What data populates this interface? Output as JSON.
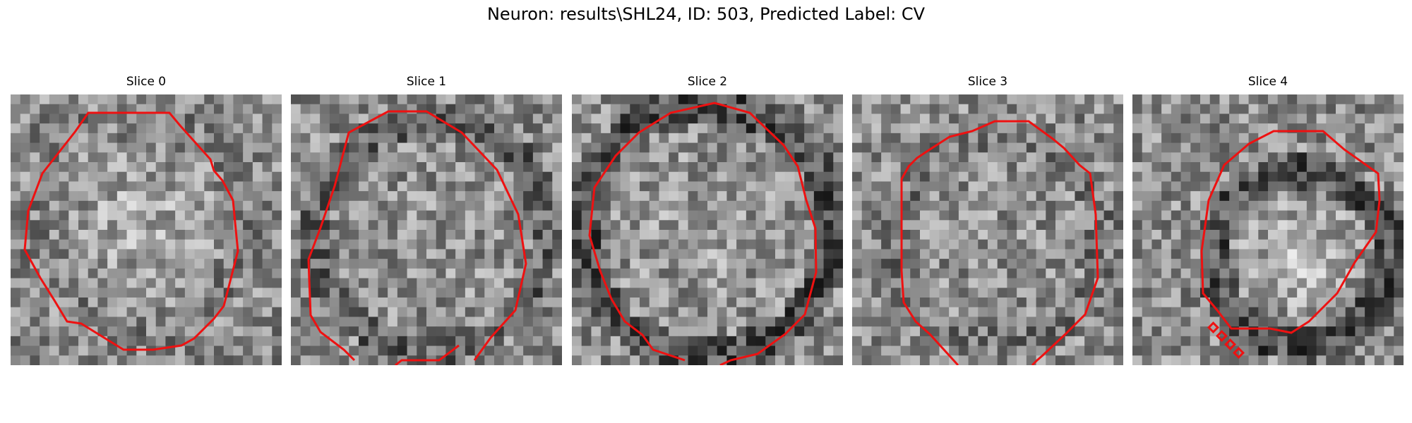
{
  "figure": {
    "title": "Neuron: results\\SHL24, ID: 503, Predicted Label: CV"
  },
  "slices": [
    {
      "title": "Slice 0"
    },
    {
      "title": "Slice 1"
    },
    {
      "title": "Slice 2"
    },
    {
      "title": "Slice 3"
    },
    {
      "title": "Slice 4"
    }
  ],
  "colors": {
    "contour": "#ee1111",
    "background": "#ffffff"
  }
}
